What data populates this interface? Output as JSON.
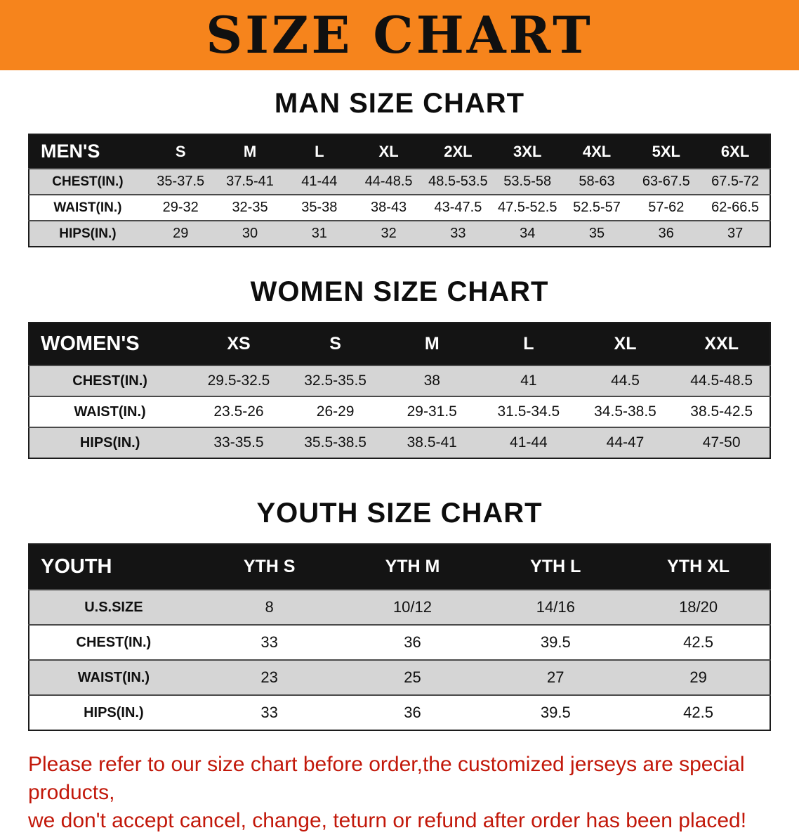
{
  "banner": {
    "title": "SIZE CHART"
  },
  "colors": {
    "banner_orange": "#f6841c",
    "table_header_black": "#141414",
    "row_gray": "#d5d5d5",
    "disclaimer_red": "#c2180a"
  },
  "sections": {
    "men": {
      "heading": "MAN SIZE CHART",
      "table": {
        "header": [
          "MEN'S",
          "S",
          "M",
          "L",
          "XL",
          "2XL",
          "3XL",
          "4XL",
          "5XL",
          "6XL"
        ],
        "rows": [
          [
            "CHEST(IN.)",
            "35-37.5",
            "37.5-41",
            "41-44",
            "44-48.5",
            "48.5-53.5",
            "53.5-58",
            "58-63",
            "63-67.5",
            "67.5-72"
          ],
          [
            "WAIST(IN.)",
            "29-32",
            "32-35",
            "35-38",
            "38-43",
            "43-47.5",
            "47.5-52.5",
            "52.5-57",
            "57-62",
            "62-66.5"
          ],
          [
            "HIPS(IN.)",
            "29",
            "30",
            "31",
            "32",
            "33",
            "34",
            "35",
            "36",
            "37"
          ]
        ]
      }
    },
    "women": {
      "heading": "WOMEN SIZE CHART",
      "table": {
        "header": [
          "WOMEN'S",
          "XS",
          "S",
          "M",
          "L",
          "XL",
          "XXL"
        ],
        "rows": [
          [
            "CHEST(IN.)",
            "29.5-32.5",
            "32.5-35.5",
            "38",
            "41",
            "44.5",
            "44.5-48.5"
          ],
          [
            "WAIST(IN.)",
            "23.5-26",
            "26-29",
            "29-31.5",
            "31.5-34.5",
            "34.5-38.5",
            "38.5-42.5"
          ],
          [
            "HIPS(IN.)",
            "33-35.5",
            "35.5-38.5",
            "38.5-41",
            "41-44",
            "44-47",
            "47-50"
          ]
        ]
      }
    },
    "youth": {
      "heading": "YOUTH SIZE CHART",
      "table": {
        "header": [
          "YOUTH",
          "YTH S",
          "YTH M",
          "YTH L",
          "YTH XL"
        ],
        "rows": [
          [
            "U.S.SIZE",
            "8",
            "10/12",
            "14/16",
            "18/20"
          ],
          [
            "CHEST(IN.)",
            "33",
            "36",
            "39.5",
            "42.5"
          ],
          [
            "WAIST(IN.)",
            "23",
            "25",
            "27",
            "29"
          ],
          [
            "HIPS(IN.)",
            "33",
            "36",
            "39.5",
            "42.5"
          ]
        ]
      }
    }
  },
  "disclaimer": {
    "line1": "Please refer to our size chart before order,the customized jerseys are special products,",
    "line2": "we don't accept cancel, change, teturn or refund after order has been placed!"
  }
}
